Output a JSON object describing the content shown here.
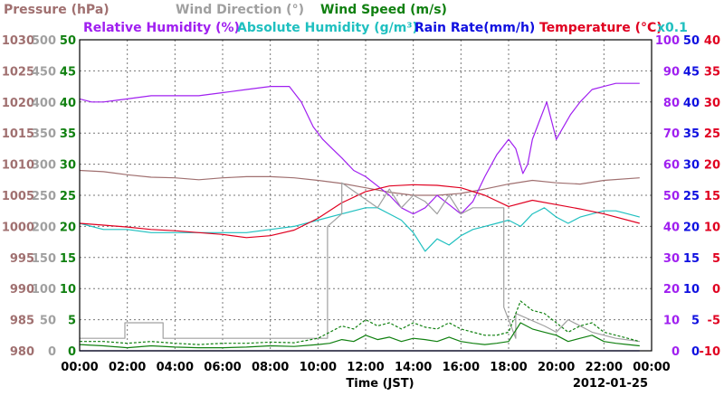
{
  "chart_data": {
    "type": "line",
    "xlabel": "Time (JST)",
    "date": "2012-01-25",
    "x_ticks": [
      "00:00",
      "02:00",
      "04:00",
      "06:00",
      "08:00",
      "10:00",
      "12:00",
      "14:00",
      "16:00",
      "18:00",
      "20:00",
      "22:00",
      "00:00"
    ],
    "legend_rows": [
      [
        {
          "text": "Pressure (hPa)",
          "color": "#a07070"
        },
        {
          "text": "Wind Direction (°)",
          "color": "#a0a0a0"
        },
        {
          "text": "Wind Speed (m/s)",
          "color": "#108010"
        }
      ],
      [
        {
          "text": "Relative Humidity (%)",
          "color": "#a020f0"
        },
        {
          "text": "Absolute Humidity (g/m³)",
          "color": "#20c0c0"
        },
        {
          "text": "Rain Rate(mm/h)",
          "color": "#1010e0"
        },
        {
          "text": "Temperature (°C)",
          "color": "#e00020"
        },
        {
          "text": "x0.1",
          "color": "#20c0c0"
        }
      ]
    ],
    "axes": {
      "pressure": {
        "color": "#a07070",
        "ylim": [
          980,
          1030
        ],
        "ticks": [
          1030,
          1025,
          1020,
          1015,
          1010,
          1005,
          1000,
          995,
          990,
          985,
          980
        ]
      },
      "wind_dir": {
        "color": "#a0a0a0",
        "ylim": [
          0,
          500
        ],
        "ticks": [
          500,
          450,
          400,
          350,
          300,
          250,
          200,
          150,
          100,
          50,
          0
        ]
      },
      "wind_speed": {
        "color": "#108010",
        "ylim": [
          0,
          50
        ],
        "ticks": [
          50,
          45,
          40,
          35,
          30,
          25,
          20,
          15,
          10,
          5,
          0
        ]
      },
      "humidity": {
        "color": "#a020f0",
        "ylim": [
          0,
          100
        ],
        "ticks": [
          100,
          90,
          80,
          70,
          60,
          50,
          40,
          30,
          20,
          10,
          0
        ]
      },
      "rain": {
        "color": "#1010e0",
        "ylim": [
          0,
          50
        ],
        "ticks": [
          50,
          45,
          40,
          35,
          30,
          25,
          20,
          15,
          10,
          5,
          0
        ]
      },
      "temperature": {
        "color": "#e00020",
        "ylim": [
          -10,
          40
        ],
        "ticks": [
          40,
          35,
          30,
          25,
          20,
          15,
          10,
          5,
          0,
          -5,
          -10
        ]
      }
    },
    "series": [
      {
        "name": "Pressure",
        "axis": "pressure",
        "color": "#a07070",
        "style": "solid",
        "x": [
          0,
          1,
          2,
          3,
          4,
          5,
          6,
          7,
          8,
          9,
          10,
          11,
          12,
          13,
          14,
          15,
          16,
          17,
          18,
          19,
          20,
          21,
          22,
          23.5
        ],
        "values": [
          1009,
          1008.8,
          1008.3,
          1007.9,
          1007.8,
          1007.5,
          1007.8,
          1008.0,
          1008.0,
          1007.8,
          1007.4,
          1006.9,
          1006.2,
          1005.5,
          1005.0,
          1005.0,
          1005.3,
          1006.0,
          1006.8,
          1007.4,
          1007.0,
          1006.8,
          1007.4,
          1007.8
        ]
      },
      {
        "name": "Relative Humidity",
        "axis": "humidity",
        "color": "#a020f0",
        "style": "solid",
        "x": [
          0,
          0.5,
          1,
          2,
          3,
          4,
          5,
          6,
          7,
          8,
          8.8,
          9.3,
          9.8,
          10.2,
          10.6,
          11,
          11.5,
          12,
          12.5,
          13,
          13.5,
          14,
          14.5,
          15,
          15.5,
          16,
          16.5,
          17,
          17.5,
          18,
          18.3,
          18.6,
          18.8,
          19,
          19.3,
          19.6,
          20,
          20.3,
          20.6,
          21,
          21.5,
          22,
          22.5,
          23,
          23.5
        ],
        "values": [
          81,
          80,
          80,
          81,
          82,
          82,
          82,
          83,
          84,
          85,
          85,
          80,
          72,
          68,
          65,
          62,
          58,
          56,
          53,
          50,
          46,
          44,
          46,
          50,
          47,
          44,
          48,
          56,
          63,
          68,
          65,
          57,
          60,
          68,
          74,
          80,
          68,
          72,
          76,
          80,
          84,
          85,
          86,
          86,
          86
        ]
      },
      {
        "name": "Absolute Humidity",
        "axis": "humidity",
        "color": "#20c0c0",
        "style": "solid",
        "x": [
          0,
          1,
          2,
          3,
          4,
          5,
          6,
          7,
          8,
          9,
          10,
          11,
          12,
          12.5,
          13,
          13.5,
          14,
          14.5,
          15,
          15.5,
          16,
          16.5,
          17,
          17.5,
          18,
          18.5,
          19,
          19.5,
          20,
          20.5,
          21,
          21.5,
          22,
          22.5,
          23,
          23.5
        ],
        "values": [
          41,
          39,
          39,
          38,
          38,
          38,
          38,
          38,
          39,
          40,
          42,
          44,
          46,
          46,
          44,
          42,
          38,
          32,
          36,
          34,
          37,
          39,
          40,
          41,
          42,
          40,
          44,
          46,
          43,
          41,
          43,
          44,
          45,
          45,
          44,
          43
        ]
      },
      {
        "name": "Temperature",
        "axis": "temperature",
        "color": "#e00020",
        "style": "solid",
        "x": [
          0,
          1,
          2,
          3,
          4,
          5,
          6,
          7,
          8,
          9,
          10,
          11,
          12,
          13,
          14,
          15,
          16,
          17,
          18,
          19,
          20,
          21,
          22,
          23.5
        ],
        "values": [
          10.5,
          10.2,
          9.9,
          9.5,
          9.3,
          9.0,
          8.7,
          8.2,
          8.5,
          9.4,
          11.3,
          13.8,
          15.6,
          16.5,
          16.7,
          16.6,
          16.2,
          15.0,
          13.2,
          14.2,
          13.5,
          12.8,
          12.0,
          10.5
        ]
      },
      {
        "name": "Wind Direction",
        "axis": "wind_dir",
        "color": "#a0a0a0",
        "style": "solid",
        "x": [
          0,
          1.9,
          1.9,
          3.5,
          3.5,
          10.4,
          10.4,
          11.0,
          11.0,
          12.5,
          13.0,
          13.5,
          14.0,
          14.5,
          15.0,
          15.5,
          16.0,
          16.5,
          17.8,
          17.8,
          18.3,
          18.3,
          19.5,
          20.0,
          20.5,
          21.5,
          22.5,
          23.5
        ],
        "values": [
          20,
          20,
          45,
          45,
          20,
          20,
          200,
          220,
          270,
          230,
          260,
          230,
          250,
          240,
          220,
          250,
          220,
          230,
          230,
          70,
          20,
          60,
          40,
          30,
          50,
          30,
          20,
          15
        ]
      },
      {
        "name": "Wind Speed",
        "axis": "wind_speed",
        "color": "#108010",
        "style": "solid",
        "x": [
          0,
          1,
          2,
          3,
          4,
          5,
          6,
          7,
          8,
          9,
          10,
          10.5,
          11,
          11.5,
          12,
          12.5,
          13,
          13.5,
          14,
          14.5,
          15,
          15.5,
          16,
          16.5,
          17,
          17.5,
          18,
          18.5,
          19,
          19.5,
          20,
          20.5,
          21,
          21.5,
          22,
          22.5,
          23,
          23.5
        ],
        "values": [
          1,
          0.8,
          0.5,
          0.8,
          0.6,
          0.5,
          0.5,
          0.6,
          0.8,
          0.7,
          1,
          1.2,
          1.8,
          1.5,
          2.5,
          1.8,
          2.2,
          1.5,
          2.0,
          1.8,
          1.5,
          2.2,
          1.5,
          1.2,
          1.0,
          1.2,
          1.5,
          4.5,
          3.5,
          3.0,
          2.5,
          1.5,
          2.0,
          2.5,
          1.5,
          1.2,
          1.0,
          0.8
        ]
      },
      {
        "name": "Wind Speed Max",
        "axis": "wind_speed",
        "color": "#108010",
        "style": "dashed",
        "x": [
          0,
          1,
          2,
          3,
          4,
          5,
          6,
          7,
          8,
          9,
          10,
          10.5,
          11,
          11.5,
          12,
          12.5,
          13,
          13.5,
          14,
          14.5,
          15,
          15.5,
          16,
          16.5,
          17,
          17.5,
          18,
          18.5,
          19,
          19.5,
          20,
          20.5,
          21,
          21.5,
          22,
          22.5,
          23,
          23.5
        ],
        "values": [
          1.5,
          1.5,
          1.2,
          1.5,
          1.2,
          1.0,
          1.2,
          1.2,
          1.4,
          1.3,
          2,
          3.0,
          4.0,
          3.5,
          5.0,
          4.0,
          4.5,
          3.5,
          4.5,
          3.8,
          3.5,
          4.5,
          3.5,
          3.0,
          2.5,
          2.5,
          3.0,
          8.0,
          6.5,
          6.0,
          4.5,
          3.0,
          4.0,
          4.5,
          3.0,
          2.5,
          2.0,
          1.5
        ]
      },
      {
        "name": "Rain Rate",
        "axis": "rain",
        "color": "#1010e0",
        "style": "solid",
        "x": [
          0,
          23.5
        ],
        "values": [
          0,
          0
        ]
      }
    ]
  }
}
